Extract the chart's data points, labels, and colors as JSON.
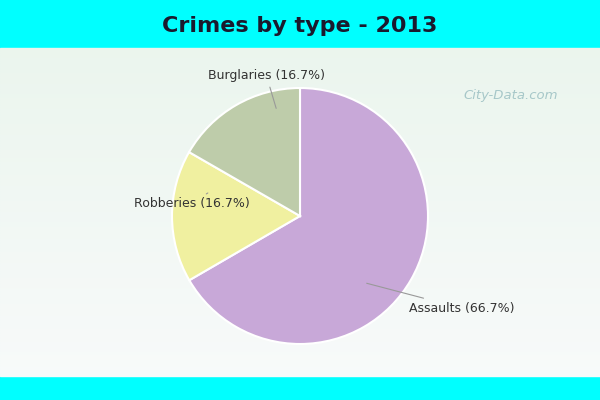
{
  "title": "Crimes by type - 2013",
  "slices": [
    {
      "label": "Assaults (66.7%)",
      "value": 66.7,
      "color": "#C8A8D8"
    },
    {
      "label": "Burglaries (16.7%)",
      "value": 16.7,
      "color": "#F0F0A0"
    },
    {
      "label": "Robberies (16.7%)",
      "value": 16.7,
      "color": "#BECCAA"
    }
  ],
  "bg_color_strip": "#00FFFF",
  "bg_gradient_top": "#E8F5F0",
  "bg_gradient_bottom": "#D0EAD8",
  "title_fontsize": 16,
  "label_fontsize": 9,
  "watermark": "City-Data.com"
}
